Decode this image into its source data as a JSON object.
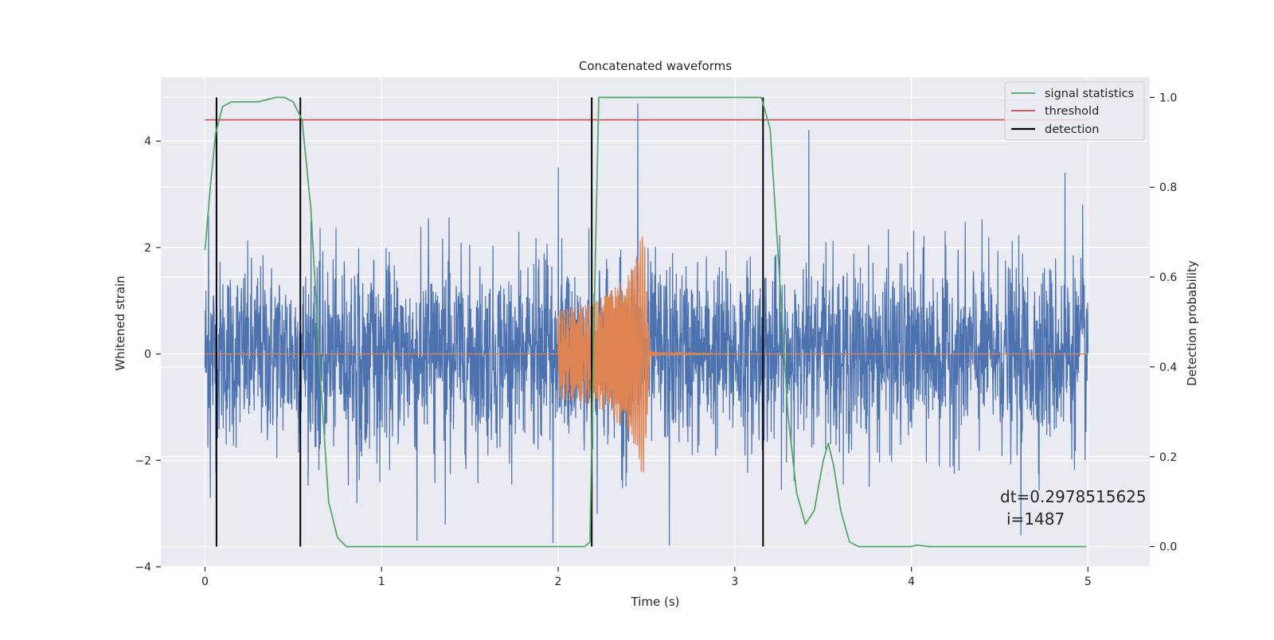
{
  "chart_data": {
    "type": "line",
    "title": "Concatenated waveforms",
    "xlabel": "Time (s)",
    "ylabel_left": "Whitened strain",
    "ylabel_right": "Detection probability",
    "xlim": [
      -0.25,
      5.35
    ],
    "ylim_left": [
      -4.0,
      5.2
    ],
    "ylim_right": [
      -0.045,
      1.045
    ],
    "x_ticks": [
      "0",
      "1",
      "2",
      "3",
      "4",
      "5"
    ],
    "x_tick_values": [
      0,
      1,
      2,
      3,
      4,
      5
    ],
    "y_left_ticks": [
      "−4",
      "−2",
      "0",
      "2",
      "4"
    ],
    "y_left_tick_values": [
      -4,
      -2,
      0,
      2,
      4
    ],
    "y_right_ticks": [
      "0.0",
      "0.2",
      "0.4",
      "0.6",
      "0.8",
      "1.0"
    ],
    "y_right_tick_values": [
      0.0,
      0.2,
      0.4,
      0.6,
      0.8,
      1.0
    ],
    "grid": true,
    "legend_position": "top-right",
    "series": [
      {
        "name": "signal statistics",
        "axis": "right",
        "color": "#55a868",
        "x": [
          0.0,
          0.03,
          0.06,
          0.1,
          0.15,
          0.2,
          0.3,
          0.4,
          0.45,
          0.5,
          0.55,
          0.6,
          0.65,
          0.7,
          0.75,
          0.8,
          1.0,
          1.5,
          2.0,
          2.15,
          2.18,
          2.2,
          2.23,
          2.3,
          2.6,
          3.0,
          3.15,
          3.2,
          3.25,
          3.3,
          3.35,
          3.4,
          3.45,
          3.5,
          3.53,
          3.56,
          3.6,
          3.65,
          3.7,
          4.0,
          4.03,
          4.1,
          4.5,
          4.99
        ],
        "values": [
          0.66,
          0.8,
          0.92,
          0.98,
          0.99,
          0.99,
          0.99,
          1.0,
          1.0,
          0.99,
          0.95,
          0.75,
          0.4,
          0.1,
          0.02,
          0.0,
          0.0,
          0.0,
          0.0,
          0.0,
          0.01,
          0.45,
          1.0,
          1.0,
          1.0,
          1.0,
          1.0,
          0.93,
          0.62,
          0.3,
          0.12,
          0.05,
          0.08,
          0.19,
          0.23,
          0.18,
          0.08,
          0.01,
          0.0,
          0.0,
          0.003,
          0.0,
          0.0,
          0.0
        ]
      },
      {
        "name": "threshold",
        "axis": "right",
        "color": "#c44e52",
        "x": [
          0.0,
          5.0
        ],
        "values": [
          0.95,
          0.95
        ]
      },
      {
        "name": "detection",
        "axis": "right",
        "color": "#000000",
        "x": [
          0.065,
          0.54,
          2.19,
          3.16
        ],
        "ymin": 0.0,
        "ymax": 1.0
      },
      {
        "axis": "left",
        "color": "#4c72b0",
        "kind": "noise",
        "x_range": [
          0.0,
          5.0
        ],
        "typical_range": [
          -2.0,
          2.6
        ],
        "peak_values": [
          {
            "x": 0.02,
            "y": 2.6
          },
          {
            "x": 0.03,
            "y": -2.7
          },
          {
            "x": 0.6,
            "y": 2.5
          },
          {
            "x": 0.86,
            "y": -2.8
          },
          {
            "x": 1.2,
            "y": -3.5
          },
          {
            "x": 1.36,
            "y": -3.2
          },
          {
            "x": 1.97,
            "y": -3.55
          },
          {
            "x": 2.0,
            "y": 3.5
          },
          {
            "x": 2.22,
            "y": -3.0
          },
          {
            "x": 2.45,
            "y": 4.7
          },
          {
            "x": 2.63,
            "y": -3.6
          },
          {
            "x": 3.42,
            "y": 4.2
          },
          {
            "x": 4.62,
            "y": -3.4
          },
          {
            "x": 4.87,
            "y": 3.4
          },
          {
            "x": 4.97,
            "y": 2.8
          }
        ]
      },
      {
        "axis": "left",
        "color": "#dd8452",
        "kind": "chirp",
        "x": [
          0.0,
          2.0,
          2.0,
          2.2,
          2.3,
          2.4,
          2.45,
          2.48,
          2.5,
          2.52,
          2.6,
          3.0,
          5.0
        ],
        "envelope": [
          0.0,
          0.0,
          0.85,
          0.95,
          1.2,
          1.5,
          1.9,
          2.5,
          1.5,
          0.05,
          0.02,
          0.0,
          0.0
        ]
      }
    ],
    "annotations": [
      "dt=0.2978515625",
      "i=1487"
    ]
  }
}
